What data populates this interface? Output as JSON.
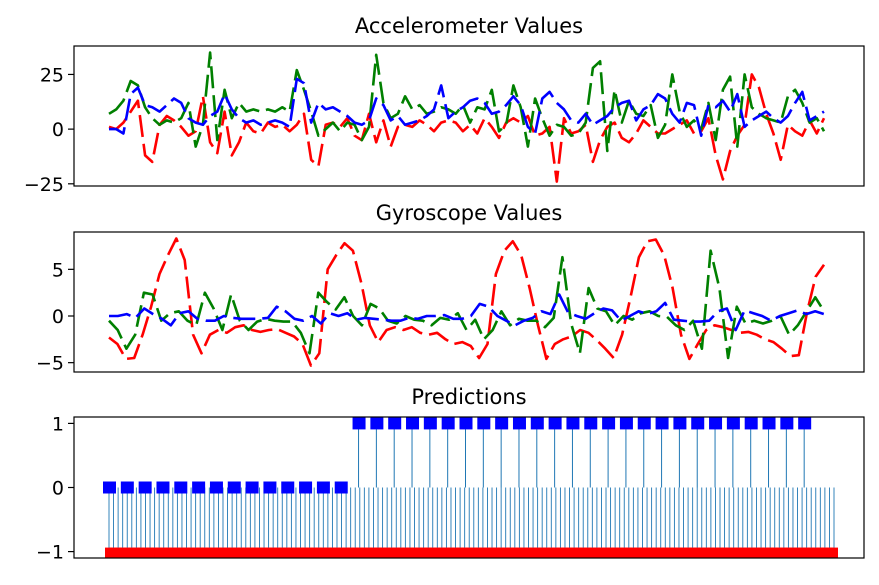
{
  "chart_data": [
    {
      "type": "line",
      "title": "Accelerometer Values",
      "xlabel": "",
      "ylabel": "",
      "ylim": [
        -26,
        38
      ],
      "yticks": [
        25,
        0,
        -25
      ],
      "ytick_labels": [
        "25",
        "0",
        "−25"
      ],
      "xlim": [
        0,
        100
      ],
      "grid": false,
      "line_style": "dashed",
      "series": [
        {
          "color": "#ff0000",
          "values": [
            1,
            0,
            3,
            8,
            13,
            -12,
            -15,
            2,
            6,
            4,
            1,
            -3,
            -1,
            15,
            -6,
            -11,
            8,
            -12,
            -6,
            3,
            -1,
            -2,
            3,
            1,
            2,
            -1,
            2,
            7,
            -14,
            -17,
            2,
            3,
            1,
            5,
            -3,
            -5,
            7,
            -6,
            4,
            -8,
            1,
            2,
            1,
            4,
            2,
            -1,
            3,
            4,
            3,
            -1,
            2,
            -2,
            5,
            1,
            -4,
            3,
            5,
            3,
            6,
            -3,
            -2,
            1,
            -24,
            5,
            -2,
            -1,
            2,
            -15,
            -5,
            1,
            3,
            -4,
            -6,
            -2,
            4,
            1,
            -2,
            -2,
            0,
            2,
            4,
            -2,
            -1,
            5,
            -12,
            -23,
            -10,
            -3,
            2,
            25,
            19,
            7,
            -2,
            -14,
            2,
            -1,
            -3,
            4,
            -2,
            5
          ]
        },
        {
          "color": "#008000",
          "values": [
            7,
            9,
            13,
            22,
            20,
            10,
            5,
            2,
            4,
            3,
            5,
            12,
            -8,
            2,
            35,
            -5,
            18,
            5,
            12,
            8,
            9,
            8,
            9,
            8,
            10,
            8,
            27,
            18,
            8,
            -3,
            0,
            3,
            -1,
            3,
            2,
            -5,
            1,
            34,
            12,
            5,
            7,
            15,
            9,
            11,
            7,
            8,
            10,
            9,
            7,
            11,
            3,
            10,
            9,
            18,
            -1,
            2,
            20,
            10,
            -8,
            14,
            5,
            -3,
            2,
            1,
            -3,
            -2,
            3,
            28,
            31,
            -10,
            18,
            3,
            13,
            7,
            6,
            11,
            -4,
            2,
            25,
            8,
            1,
            4,
            0,
            12,
            -5,
            18,
            24,
            -8,
            25,
            10,
            7,
            5,
            4,
            3,
            15,
            18,
            12,
            3,
            5,
            -1
          ]
        },
        {
          "color": "#0000ff",
          "values": [
            0,
            0,
            -2,
            16,
            19,
            11,
            10,
            8,
            11,
            14,
            12,
            5,
            3,
            2,
            6,
            8,
            16,
            9,
            5,
            3,
            4,
            2,
            3,
            4,
            3,
            1,
            23,
            21,
            3,
            12,
            9,
            10,
            8,
            6,
            3,
            2,
            4,
            14,
            11,
            4,
            6,
            2,
            3,
            4,
            6,
            9,
            20,
            5,
            8,
            10,
            13,
            14,
            12,
            7,
            8,
            11,
            15,
            11,
            1,
            -2,
            14,
            17,
            12,
            9,
            4,
            3,
            7,
            2,
            4,
            6,
            10,
            12,
            13,
            4,
            9,
            11,
            16,
            14,
            7,
            3,
            12,
            11,
            -3,
            11,
            10,
            13,
            8,
            16,
            1,
            4,
            6,
            8,
            5,
            3,
            6,
            12,
            17,
            4,
            6,
            8
          ]
        }
      ]
    },
    {
      "type": "line",
      "title": "Gyroscope Values",
      "xlabel": "",
      "ylabel": "",
      "ylim": [
        -6,
        9
      ],
      "yticks": [
        5,
        0,
        -5
      ],
      "ytick_labels": [
        "5",
        "0",
        "−5"
      ],
      "xlim": [
        0,
        100
      ],
      "grid": false,
      "line_style": "dashed",
      "series": [
        {
          "color": "#ff0000",
          "values": [
            -2.3,
            -3,
            -4.6,
            -4.5,
            -2,
            1,
            4.5,
            6.5,
            8.3,
            6,
            -2,
            -4,
            -2,
            -1.5,
            -1.8,
            -1.2,
            -1,
            -1.5,
            -1.7,
            -1.5,
            -1.4,
            -1.8,
            -2.2,
            -3,
            -5.3,
            -4,
            5,
            6.5,
            7.8,
            7,
            3.5,
            -1,
            -2.8,
            -1.5,
            -1.2,
            -1.5,
            -1.2,
            -1.8,
            -2,
            -1.8,
            -2.5,
            -3,
            -2.8,
            -3.2,
            -4.5,
            -3,
            4.5,
            7,
            8,
            6.5,
            3,
            -1,
            -4.6,
            -3,
            -2.5,
            -2.2,
            -1.5,
            -1.8,
            -2.6,
            -3.5,
            -4.5,
            -2,
            2,
            6.3,
            8,
            8.2,
            6.5,
            3,
            -2,
            -4.6,
            -3,
            -1.5,
            -1,
            -1.2,
            -1.5,
            -1.8,
            -1.7,
            -2,
            -2.5,
            -2.8,
            -3.5,
            -4.3,
            -4.2,
            0.5,
            4.2,
            5.5
          ]
        },
        {
          "color": "#008000",
          "values": [
            -0.5,
            -1.5,
            -3.5,
            -2,
            2.5,
            2.3,
            -0.5,
            0.3,
            0.5,
            -0.5,
            -1,
            2.5,
            0.8,
            -1.5,
            2.3,
            -0.5,
            -1.5,
            -0.6,
            -0.3,
            -0.5,
            -0.6,
            -0.6,
            -1.8,
            -4,
            2.5,
            1.5,
            0.7,
            2,
            0,
            -1,
            1.3,
            0.8,
            -0.5,
            -0.8,
            0,
            -0.4,
            -0.5,
            -1,
            -0.2,
            -0.4,
            0.3,
            -1.5,
            -0.4,
            -2.5,
            -1.5,
            0.5,
            -1,
            -0.3,
            -0.5,
            -0.5,
            -1.2,
            -0.2,
            6.3,
            -0.8,
            -4,
            3,
            0.8,
            0.5,
            -1,
            0,
            -0.4,
            0.3,
            0.5,
            0,
            -0.1,
            -1,
            -1.5,
            -0.5,
            -3.5,
            7,
            3,
            -4.5,
            1,
            -0.8,
            -0.5,
            -0.8,
            -0.5,
            0,
            -2,
            -1,
            0.5,
            2,
            0.5
          ]
        },
        {
          "color": "#0000ff",
          "values": [
            0,
            0,
            0.2,
            -0.2,
            0.8,
            0.2,
            -0.3,
            -1,
            0.3,
            0.5,
            -0.3,
            -0.5,
            -0.5,
            0,
            -0.2,
            -0.3,
            -0.3,
            -0.3,
            -0.2,
            1,
            0.5,
            -0.3,
            -0.5,
            0,
            -0.8,
            0.3,
            0,
            0.3,
            -0.4,
            -0.2,
            -0.3,
            -0.4,
            -0.5,
            -0.5,
            -0.2,
            -0.3,
            0,
            0,
            0.1,
            -0.3,
            -0.3,
            0,
            1.3,
            1,
            0,
            -0.5,
            -1,
            -0.5,
            -0.2,
            0.5,
            0.2,
            2.3,
            0.4,
            0,
            -0.3,
            0.3,
            0.8,
            0.6,
            -0.5,
            0,
            0.5,
            0.2,
            0.5,
            1.4,
            -0.4,
            -0.5,
            -0.6,
            -0.6,
            -0.5,
            0.5,
            0.8,
            -1.5,
            0.6,
            0.3,
            0,
            -0.5,
            0,
            0.3,
            0.6,
            0.2,
            0.5,
            0.2
          ]
        }
      ]
    },
    {
      "type": "stem",
      "title": "Predictions",
      "xlabel": "",
      "ylabel": "",
      "ylim": [
        -1.1,
        1.1
      ],
      "yticks": [
        1,
        0,
        -1
      ],
      "ytick_labels": [
        "1",
        "0",
        "−1"
      ],
      "xlim": [
        0,
        100
      ],
      "grid": false,
      "series": [
        {
          "name": "",
          "color": "#0000ff",
          "marker": "square",
          "x": [
            0,
            2.5,
            5,
            7.5,
            10,
            12.5,
            15,
            17.5,
            20,
            22.5,
            25,
            27.5,
            30,
            32.5,
            35,
            37.5,
            40,
            42.5,
            45,
            47.5,
            50,
            52.5,
            55,
            57.5,
            60,
            62.5,
            65,
            67.5,
            70,
            72.5,
            75,
            77.5,
            80,
            82.5,
            85,
            87.5,
            90,
            92.5,
            95,
            97.5
          ],
          "values": [
            0,
            0,
            0,
            0,
            0,
            0,
            0,
            0,
            0,
            0,
            0,
            0,
            0,
            0,
            1,
            1,
            1,
            1,
            1,
            1,
            1,
            1,
            1,
            1,
            1,
            1,
            1,
            1,
            1,
            1,
            1,
            1,
            1,
            1,
            1,
            1,
            1,
            1,
            1,
            1
          ]
        },
        {
          "name": "",
          "color": "#ff0000",
          "marker": "square",
          "dense_count": 160,
          "start": 0,
          "end": 100,
          "value": -1
        }
      ],
      "stem_color": "#1f77b4"
    }
  ]
}
